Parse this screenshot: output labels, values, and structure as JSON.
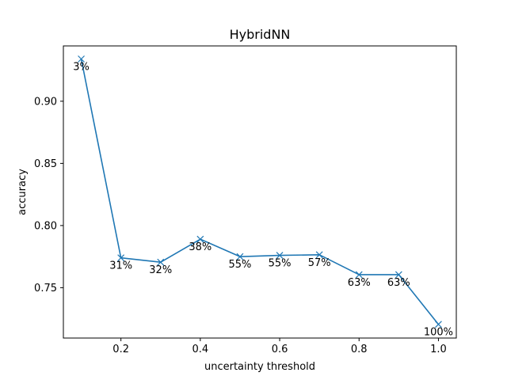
{
  "chart_data": {
    "type": "line",
    "title": "HybridNN",
    "xlabel": "uncertainty threshold",
    "ylabel": "accuracy",
    "xlim": [
      0.055,
      1.045
    ],
    "ylim": [
      0.7095,
      0.9445
    ],
    "x_ticks": [
      "0.2",
      "0.4",
      "0.6",
      "0.8",
      "1.0"
    ],
    "y_ticks": [
      "0.75",
      "0.80",
      "0.85",
      "0.90"
    ],
    "grid": false,
    "marker": "x",
    "line_color": "#1f77b4",
    "series": [
      {
        "x": [
          0.1,
          0.2,
          0.3,
          0.4,
          0.5,
          0.6,
          0.7,
          0.8,
          0.9,
          1.0
        ],
        "y": [
          0.934,
          0.774,
          0.7705,
          0.789,
          0.775,
          0.776,
          0.7765,
          0.7605,
          0.7605,
          0.7205
        ],
        "labels": [
          "3%",
          "31%",
          "32%",
          "38%",
          "55%",
          "55%",
          "57%",
          "63%",
          "63%",
          "100%"
        ]
      }
    ]
  }
}
